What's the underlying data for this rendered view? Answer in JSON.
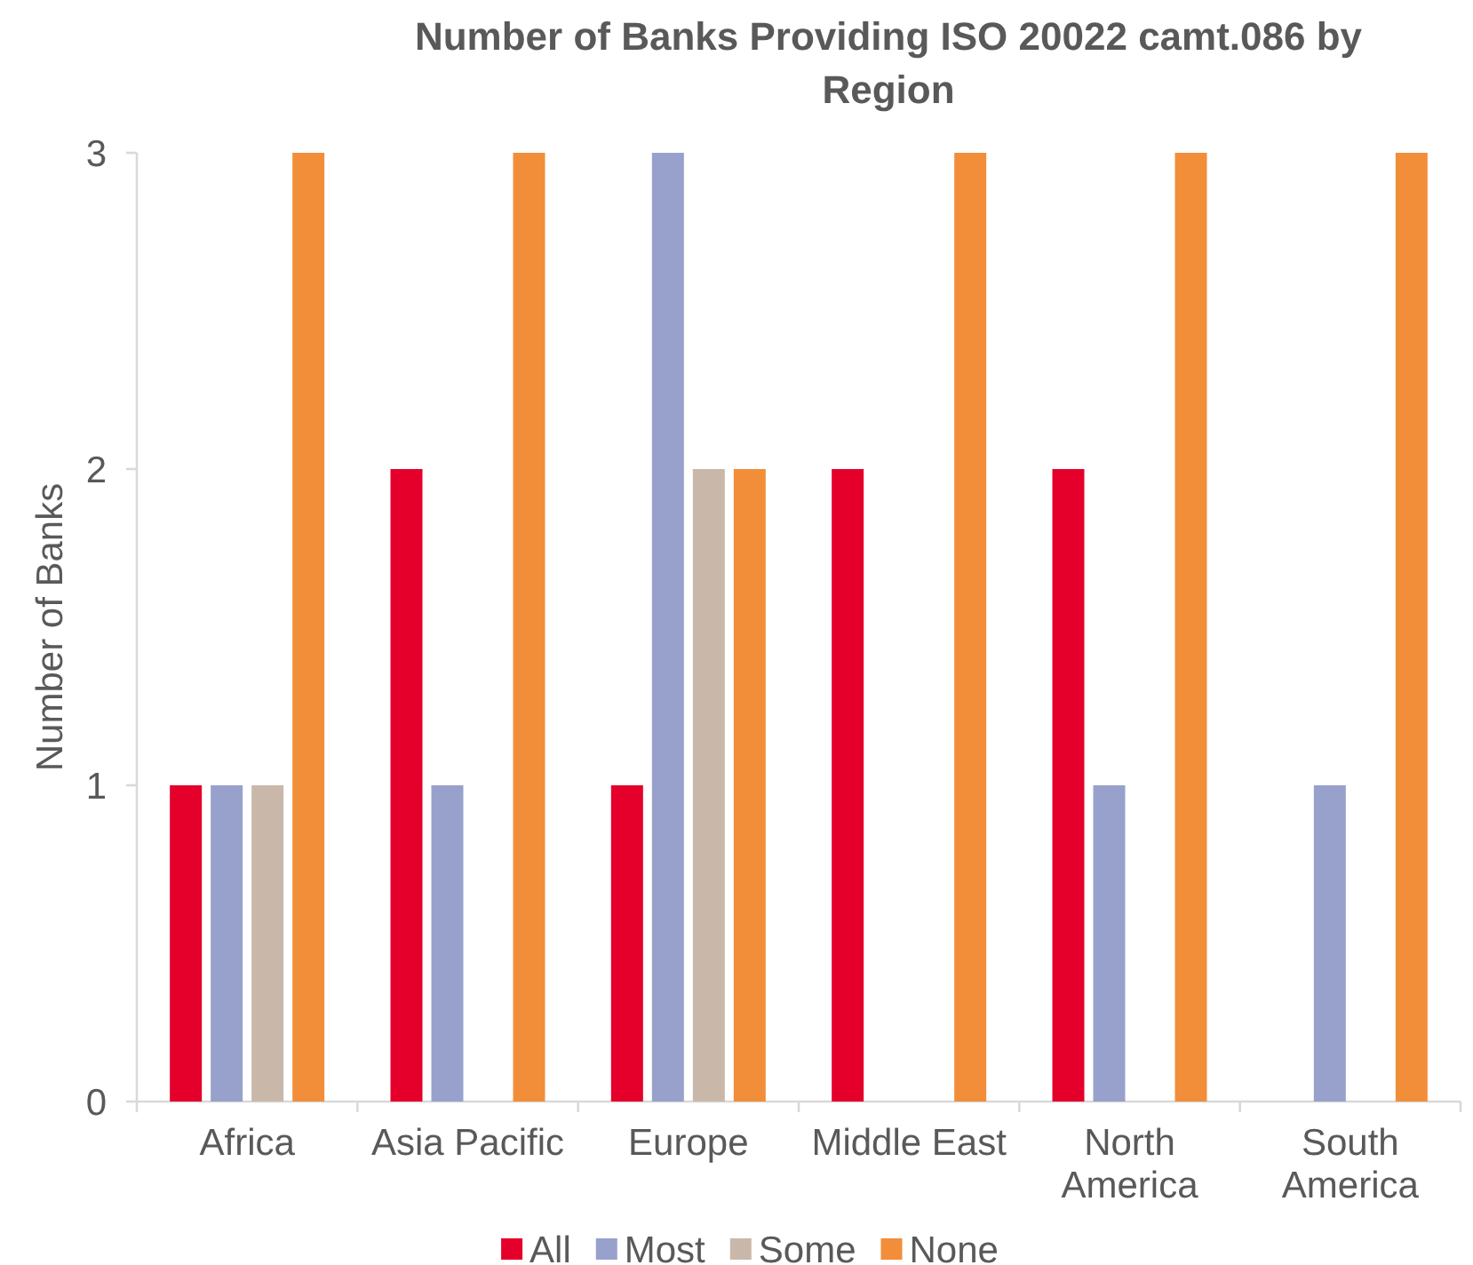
{
  "chart_data": {
    "type": "bar",
    "title": "Number of Banks Providing ISO 20022 camt.086 by Region",
    "ylabel": "Number of Banks",
    "categories": [
      "Africa",
      "Asia Pacific",
      "Europe",
      "Middle East",
      "North America",
      "South America"
    ],
    "series": [
      {
        "name": "All",
        "color": "#e4002b",
        "values": [
          1,
          2,
          1,
          2,
          2,
          0
        ]
      },
      {
        "name": "Most",
        "color": "#98a1cb",
        "values": [
          1,
          1,
          3,
          0,
          1,
          1
        ]
      },
      {
        "name": "Some",
        "color": "#c9b8a9",
        "values": [
          1,
          0,
          2,
          0,
          0,
          0
        ]
      },
      {
        "name": "None",
        "color": "#f28e3a",
        "values": [
          3,
          3,
          2,
          3,
          3,
          3
        ]
      }
    ],
    "ylim": [
      0,
      3
    ],
    "yticks": [
      0,
      1,
      2,
      3
    ],
    "legend": "bottom"
  }
}
